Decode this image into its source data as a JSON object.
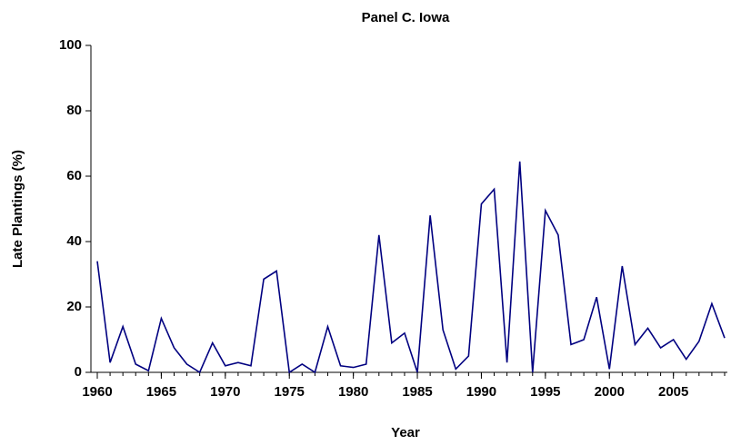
{
  "chart_data": {
    "type": "line",
    "title": "Panel C. Iowa",
    "x_label": "Year",
    "y_label": "Late Plantings (%)",
    "x": [
      1960,
      1961,
      1962,
      1963,
      1964,
      1965,
      1966,
      1967,
      1968,
      1969,
      1970,
      1971,
      1972,
      1973,
      1974,
      1975,
      1976,
      1977,
      1978,
      1979,
      1980,
      1981,
      1982,
      1983,
      1984,
      1985,
      1986,
      1987,
      1988,
      1989,
      1990,
      1991,
      1992,
      1993,
      1994,
      1995,
      1996,
      1997,
      1998,
      1999,
      2000,
      2001,
      2002,
      2003,
      2004,
      2005,
      2006,
      2007,
      2008,
      2009
    ],
    "series": [
      {
        "name": "Iowa",
        "color": "#000080",
        "values": [
          34,
          3,
          14,
          2.5,
          0.5,
          16.5,
          7.5,
          2.5,
          0,
          9,
          2,
          3,
          2,
          28.5,
          31,
          0,
          2.5,
          0,
          14,
          2,
          1.5,
          2.5,
          42,
          9,
          12,
          0,
          48,
          13,
          1,
          5,
          51.5,
          56,
          3,
          64.5,
          0,
          49.5,
          42,
          8.5,
          10,
          23,
          1,
          32.5,
          8.5,
          13.5,
          7.5,
          10,
          4,
          9.5,
          21,
          10.5
        ]
      }
    ],
    "xlim": [
      1960,
      2009
    ],
    "xticks": [
      1960,
      1965,
      1970,
      1975,
      1980,
      1985,
      1990,
      1995,
      2000,
      2005
    ],
    "ylim": [
      0,
      100
    ],
    "yticks": [
      0,
      20,
      40,
      60,
      80,
      100
    ],
    "grid": false
  }
}
